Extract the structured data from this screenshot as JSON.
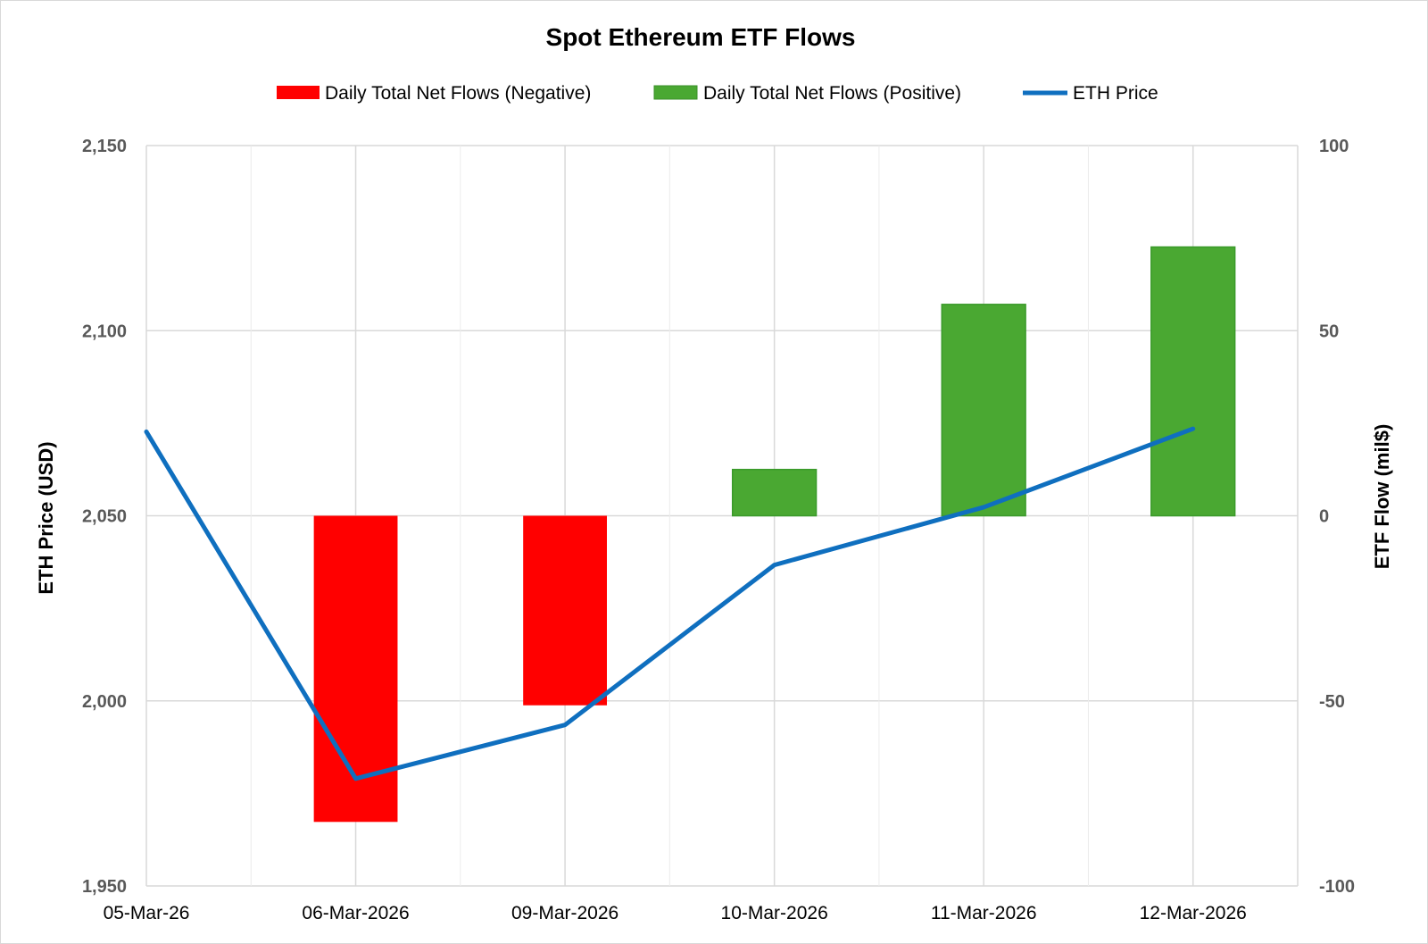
{
  "chart_data": {
    "type": "bar",
    "title": "Spot Ethereum ETF Flows",
    "categories": [
      "05-Mar-26",
      "06-Mar-2026",
      "09-Mar-2026",
      "10-Mar-2026",
      "11-Mar-2026",
      "12-Mar-2026"
    ],
    "series": [
      {
        "name": "Daily Total Net Flows (Negative)",
        "type": "bar",
        "axis": "right",
        "color": "#ff0000",
        "values": [
          null,
          -82.7,
          -51.2,
          null,
          null,
          null
        ]
      },
      {
        "name": "Daily Total Net Flows (Positive)",
        "type": "bar",
        "axis": "right",
        "color": "#4aa832",
        "values": [
          null,
          null,
          null,
          12.5,
          57.1,
          72.6
        ]
      },
      {
        "name": "ETH Price",
        "type": "line",
        "axis": "left",
        "color": "#0f6fbf",
        "values": [
          2072.7,
          1979.0,
          1993.5,
          2036.7,
          2052.3,
          2073.5
        ]
      }
    ],
    "y_left": {
      "label": "ETH Price (USD)",
      "range": [
        1950,
        2150
      ],
      "ticks": [
        1950,
        2000,
        2050,
        2100,
        2150
      ],
      "tick_labels": [
        "1,950",
        "2,000",
        "2,050",
        "2,100",
        "2,150"
      ]
    },
    "y_right": {
      "label": "ETF Flow (mil$)",
      "range": [
        -100,
        100
      ],
      "ticks": [
        -100,
        -50,
        0,
        50,
        100
      ],
      "tick_labels": [
        "-100",
        "-50",
        "0",
        "50",
        "100"
      ]
    },
    "grid": true,
    "legend_position": "top-center"
  }
}
